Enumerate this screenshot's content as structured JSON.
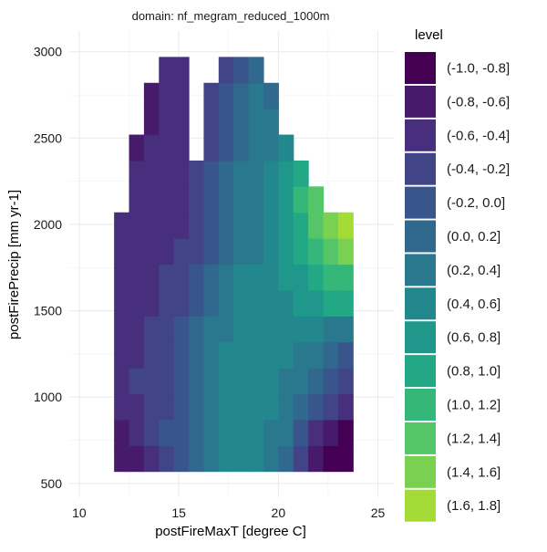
{
  "chart_data": {
    "type": "contour",
    "title": "domain: nf_megram_reduced_1000m",
    "xlabel": "postFireMaxT [degree C]",
    "ylabel": "postFirePrecip [mm yr-1]",
    "xlim": [
      9.5,
      25.8
    ],
    "ylim": [
      420,
      3120
    ],
    "xticks": [
      10,
      15,
      20,
      25
    ],
    "yticks": [
      500,
      1000,
      1500,
      2000,
      2500,
      3000
    ],
    "grid": true,
    "legend": {
      "title": "level",
      "position": "right",
      "entries": [
        {
          "label": "(-1.0, -0.8]",
          "color": "#440154"
        },
        {
          "label": "(-0.8, -0.6]",
          "color": "#481A6C"
        },
        {
          "label": "(-0.6, -0.4]",
          "color": "#472F7D"
        },
        {
          "label": "(-0.4, -0.2]",
          "color": "#414487"
        },
        {
          "label": "(-0.2, 0.0]",
          "color": "#39568C"
        },
        {
          "label": "(0.0, 0.2]",
          "color": "#31688E"
        },
        {
          "label": "(0.2, 0.4]",
          "color": "#2A788E"
        },
        {
          "label": "(0.4, 0.6]",
          "color": "#23888E"
        },
        {
          "label": "(0.6, 0.8]",
          "color": "#1F988B"
        },
        {
          "label": "(0.8, 1.0]",
          "color": "#22A884"
        },
        {
          "label": "(1.0, 1.2]",
          "color": "#35B779"
        },
        {
          "label": "(1.2, 1.4]",
          "color": "#54C568"
        },
        {
          "label": "(1.4, 1.6]",
          "color": "#7AD151"
        },
        {
          "label": "(1.6, 1.8]",
          "color": "#A5DB36"
        }
      ]
    },
    "field": {
      "x_edges": [
        11.75,
        12.5,
        13.25,
        14.0,
        14.75,
        15.5,
        16.25,
        17.0,
        17.75,
        18.5,
        19.25,
        20.0,
        20.75,
        21.5,
        22.25,
        23.0,
        23.75
      ],
      "y_edges": [
        570,
        720,
        870,
        1020,
        1170,
        1320,
        1470,
        1620,
        1770,
        1920,
        2070,
        2220,
        2370,
        2520,
        2670,
        2820,
        2970
      ],
      "levels": [
        [
          1,
          1,
          2,
          3,
          4,
          5,
          6,
          7,
          7,
          7,
          6,
          5,
          3,
          1,
          0,
          0
        ],
        [
          1,
          2,
          3,
          4,
          4,
          5,
          6,
          7,
          7,
          7,
          6,
          6,
          4,
          2,
          1,
          0
        ],
        [
          2,
          2,
          3,
          3,
          4,
          5,
          6,
          7,
          7,
          7,
          7,
          6,
          5,
          4,
          3,
          2
        ],
        [
          2,
          3,
          3,
          3,
          4,
          5,
          6,
          7,
          7,
          7,
          7,
          6,
          6,
          5,
          4,
          3
        ],
        [
          2,
          2,
          3,
          3,
          4,
          5,
          6,
          7,
          7,
          7,
          7,
          7,
          6,
          6,
          5,
          4
        ],
        [
          2,
          2,
          3,
          3,
          4,
          5,
          6,
          6,
          7,
          7,
          7,
          7,
          7,
          7,
          6,
          6
        ],
        [
          2,
          2,
          2,
          3,
          3,
          4,
          5,
          6,
          7,
          7,
          7,
          7,
          8,
          8,
          9,
          9
        ],
        [
          2,
          2,
          2,
          3,
          3,
          4,
          5,
          6,
          7,
          7,
          7,
          8,
          8,
          9,
          10,
          10
        ],
        [
          2,
          2,
          2,
          2,
          3,
          3,
          4,
          5,
          6,
          6,
          7,
          8,
          9,
          10,
          11,
          12
        ],
        [
          2,
          2,
          2,
          2,
          2,
          3,
          4,
          5,
          6,
          6,
          7,
          8,
          9,
          11,
          12,
          13
        ],
        [
          -1,
          2,
          2,
          2,
          2,
          3,
          4,
          5,
          6,
          6,
          7,
          8,
          10,
          11,
          -1,
          -1
        ],
        [
          -1,
          2,
          2,
          2,
          2,
          3,
          4,
          5,
          6,
          6,
          7,
          8,
          9,
          -1,
          -1,
          -1
        ],
        [
          -1,
          1,
          2,
          2,
          2,
          -1,
          3,
          4,
          5,
          6,
          6,
          7,
          -1,
          -1,
          -1,
          -1
        ],
        [
          -1,
          -1,
          1,
          2,
          2,
          -1,
          3,
          4,
          5,
          6,
          6,
          -1,
          -1,
          -1,
          -1,
          -1
        ],
        [
          -1,
          -1,
          1,
          2,
          2,
          -1,
          3,
          4,
          5,
          6,
          5,
          -1,
          -1,
          -1,
          -1,
          -1
        ],
        [
          -1,
          -1,
          -1,
          2,
          2,
          -1,
          -1,
          3,
          4,
          5,
          -1,
          -1,
          -1,
          -1,
          -1,
          -1
        ]
      ]
    }
  }
}
